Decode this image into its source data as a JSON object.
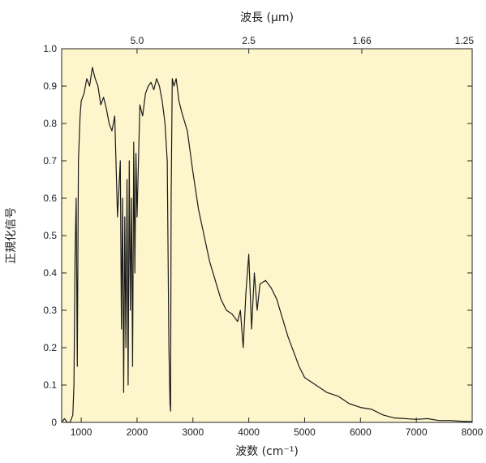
{
  "chart_data": {
    "type": "line",
    "top_axis": {
      "label": "波長 (µm)",
      "ticks": [
        {
          "label": "5.0",
          "wavenumber": 2000
        },
        {
          "label": "2.5",
          "wavenumber": 4000
        },
        {
          "label": "1.66",
          "wavenumber": 6024
        },
        {
          "label": "1.25",
          "wavenumber": 8000
        }
      ]
    },
    "xlabel": "波数 (cm⁻¹)",
    "ylabel": "正規化信号",
    "xlim": [
      650,
      8000
    ],
    "ylim": [
      0,
      1.0
    ],
    "xticks": [
      1000,
      2000,
      3000,
      4000,
      5000,
      6000,
      7000,
      8000
    ],
    "yticks": [
      0,
      0.1,
      0.2,
      0.3,
      0.4,
      0.5,
      0.6,
      0.7,
      0.8,
      0.9,
      1.0
    ],
    "ytick_labels": [
      "0",
      "0.1",
      "0.2",
      "0.3",
      "0.4",
      "0.5",
      "0.6",
      "0.7",
      "0.8",
      "0.9",
      "1.0"
    ],
    "grid": false,
    "colors": {
      "plot_background": "#FDF6CC",
      "line": "#1a1a1a",
      "axis": "#222222"
    },
    "series": [
      {
        "x": [
          650,
          700,
          750,
          800,
          850,
          870,
          890,
          910,
          930,
          950,
          980,
          1000,
          1050,
          1100,
          1150,
          1200,
          1250,
          1300,
          1350,
          1400,
          1450,
          1500,
          1550,
          1600,
          1650,
          1700,
          1720,
          1740,
          1760,
          1780,
          1800,
          1820,
          1840,
          1860,
          1880,
          1900,
          1920,
          1940,
          1960,
          1980,
          2000,
          2050,
          2100,
          2150,
          2200,
          2250,
          2300,
          2350,
          2400,
          2450,
          2500,
          2540,
          2570,
          2590,
          2600,
          2610,
          2630,
          2660,
          2700,
          2750,
          2800,
          2900,
          3000,
          3100,
          3200,
          3300,
          3400,
          3500,
          3600,
          3700,
          3800,
          3850,
          3900,
          3950,
          4000,
          4050,
          4100,
          4150,
          4200,
          4300,
          4400,
          4500,
          4600,
          4700,
          4800,
          4900,
          5000,
          5200,
          5400,
          5600,
          5800,
          6000,
          6200,
          6400,
          6600,
          6800,
          7000,
          7200,
          7400,
          7600,
          7800,
          8000
        ],
        "y": [
          0.0,
          0.01,
          0.0,
          0.0,
          0.02,
          0.1,
          0.45,
          0.6,
          0.15,
          0.7,
          0.82,
          0.86,
          0.88,
          0.92,
          0.9,
          0.95,
          0.92,
          0.9,
          0.85,
          0.87,
          0.84,
          0.8,
          0.78,
          0.82,
          0.55,
          0.7,
          0.25,
          0.6,
          0.08,
          0.55,
          0.2,
          0.65,
          0.1,
          0.7,
          0.3,
          0.6,
          0.15,
          0.75,
          0.4,
          0.72,
          0.55,
          0.85,
          0.82,
          0.88,
          0.9,
          0.91,
          0.89,
          0.92,
          0.9,
          0.86,
          0.8,
          0.7,
          0.2,
          0.05,
          0.03,
          0.6,
          0.92,
          0.9,
          0.92,
          0.86,
          0.83,
          0.78,
          0.67,
          0.57,
          0.5,
          0.43,
          0.38,
          0.33,
          0.3,
          0.29,
          0.27,
          0.3,
          0.2,
          0.35,
          0.45,
          0.25,
          0.4,
          0.3,
          0.37,
          0.38,
          0.36,
          0.33,
          0.28,
          0.23,
          0.19,
          0.15,
          0.12,
          0.1,
          0.08,
          0.07,
          0.05,
          0.04,
          0.035,
          0.02,
          0.012,
          0.01,
          0.008,
          0.01,
          0.005,
          0.005,
          0.003,
          0.002
        ]
      }
    ]
  }
}
